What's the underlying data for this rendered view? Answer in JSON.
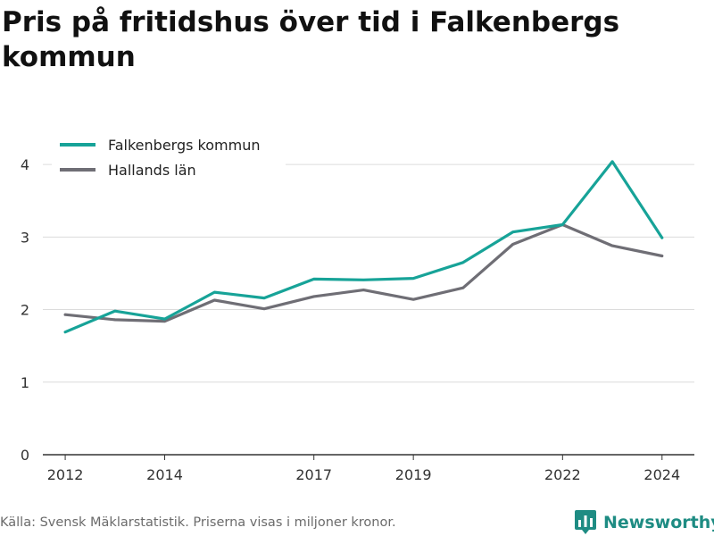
{
  "title": "Pris på fritidshus över tid i Falkenbergs kommun",
  "footer": "Källa: Svensk Mäklarstatistik. Priserna visas i miljoner kronor.",
  "brand": {
    "name": "Newsworthy",
    "icon": "newsworthy-logo-icon",
    "color": "#1e8c83"
  },
  "chart_data": {
    "type": "line",
    "x": [
      2012,
      2013,
      2014,
      2015,
      2016,
      2017,
      2018,
      2019,
      2020,
      2021,
      2022,
      2023,
      2024
    ],
    "x_ticks": [
      "2012",
      "2014",
      "2017",
      "2019",
      "2022",
      "2024"
    ],
    "y_ticks": [
      "0",
      "1",
      "2",
      "3",
      "4"
    ],
    "ylim": [
      0,
      4.1
    ],
    "xlim": [
      2011.55,
      2024.65
    ],
    "grid": true,
    "legend_position": "top-left",
    "series": [
      {
        "name": "Falkenbergs kommun",
        "color": "#17a398",
        "values": [
          1.69,
          1.98,
          1.87,
          2.24,
          2.16,
          2.42,
          2.41,
          2.43,
          2.65,
          3.07,
          3.17,
          4.04,
          2.99
        ]
      },
      {
        "name": "Hallands län",
        "color": "#6f6e75",
        "values": [
          1.93,
          1.86,
          1.84,
          2.13,
          2.01,
          2.18,
          2.27,
          2.14,
          2.3,
          2.9,
          3.17,
          2.88,
          2.74
        ]
      }
    ]
  }
}
